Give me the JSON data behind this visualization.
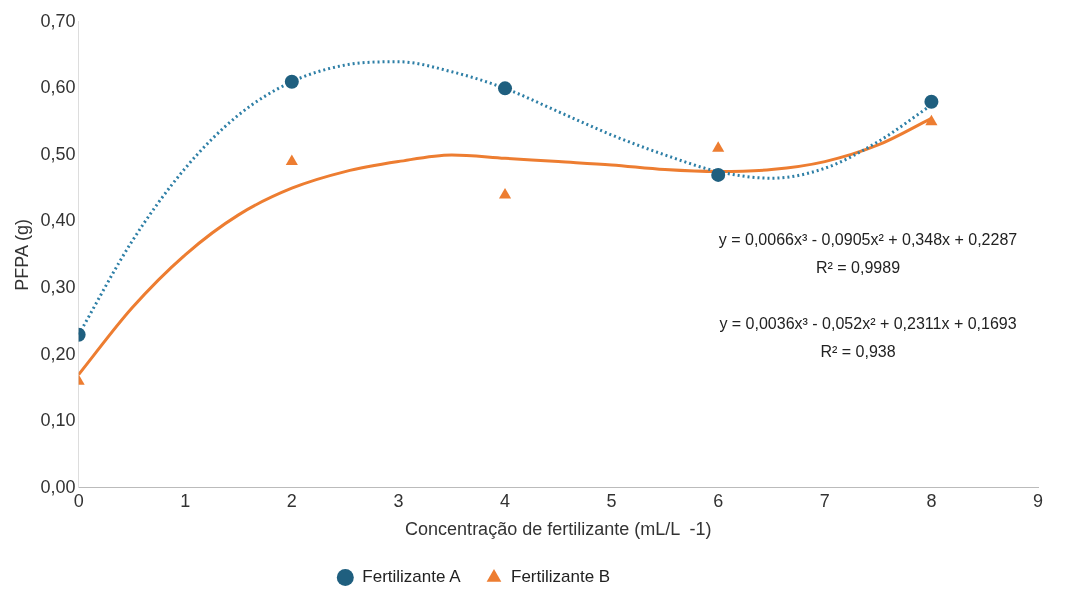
{
  "chart_data": {
    "type": "scatter",
    "xlabel": "Concentração de fertilizante (mL/L  -1)",
    "ylabel": "PFPA (g)",
    "xlim": [
      0,
      9
    ],
    "xticks": [
      0,
      1,
      2,
      3,
      4,
      5,
      6,
      7,
      8,
      9
    ],
    "ylim": [
      0,
      0.7
    ],
    "yticks": [
      {
        "value": 0,
        "label": "0,00"
      },
      {
        "value": 0.1,
        "label": "0,10"
      },
      {
        "value": 0.2,
        "label": "0,20"
      },
      {
        "value": 0.3,
        "label": "0,30"
      },
      {
        "value": 0.4,
        "label": "0,40"
      },
      {
        "value": 0.5,
        "label": "0,50"
      },
      {
        "value": 0.6,
        "label": "0,60"
      },
      {
        "value": 0.7,
        "label": "0,70"
      }
    ],
    "grid": false,
    "legend": "bottom",
    "series": [
      {
        "name": "Fertilizante A",
        "marker": "circle",
        "color": "#1f5f7f",
        "x": [
          0,
          2,
          4,
          6,
          8
        ],
        "values": [
          0.23,
          0.61,
          0.6,
          0.47,
          0.58
        ]
      },
      {
        "name": "Fertilizante B",
        "marker": "triangle",
        "color": "#ed7d31",
        "x": [
          0,
          2,
          4,
          6,
          8
        ],
        "values": [
          0.16,
          0.49,
          0.44,
          0.51,
          0.55
        ]
      },
      {
        "type": "line",
        "marker": "none",
        "line_style": "dotted",
        "color": "#2e7fa6",
        "x": [
          0,
          0.5,
          1,
          1.5,
          2,
          2.5,
          3,
          3.5,
          4,
          4.5,
          5,
          5.5,
          6,
          6.5,
          7,
          7.5,
          8
        ],
        "values": [
          0.23,
          0.37,
          0.48,
          0.56,
          0.61,
          0.635,
          0.64,
          0.625,
          0.6,
          0.565,
          0.53,
          0.5,
          0.475,
          0.465,
          0.48,
          0.52,
          0.575
        ]
      },
      {
        "type": "line",
        "marker": "none",
        "line_style": "solid",
        "color": "#ed7d31",
        "x": [
          0,
          0.5,
          1,
          1.5,
          2,
          2.5,
          3,
          3.5,
          4,
          4.5,
          5,
          5.5,
          6,
          6.5,
          7,
          7.5,
          8
        ],
        "values": [
          0.17,
          0.27,
          0.35,
          0.41,
          0.45,
          0.475,
          0.49,
          0.5,
          0.495,
          0.49,
          0.485,
          0.478,
          0.475,
          0.478,
          0.49,
          0.515,
          0.555
        ]
      }
    ],
    "annotations": [
      "y = 0,0066x³ - 0,0905x² + 0,348x + 0,2287",
      "R² = 0,9989",
      "y = 0,0036x³ - 0,052x² + 0,2311x + 0,1693",
      "R² = 0,938"
    ]
  }
}
